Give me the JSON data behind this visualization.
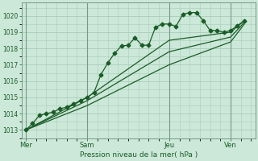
{
  "bg_color": "#cce8d8",
  "grid_color": "#aaccbb",
  "line_color": "#1a5c28",
  "ylabel": "Pression niveau de la mer( hPa )",
  "ylim": [
    1012.5,
    1020.8
  ],
  "yticks": [
    1013,
    1014,
    1015,
    1016,
    1017,
    1018,
    1019,
    1020
  ],
  "day_labels": [
    "Mer",
    "Sam",
    "Jeu",
    "Ven"
  ],
  "day_positions": [
    0.0,
    3.0,
    7.0,
    10.0
  ],
  "xlim": [
    -0.2,
    11.2
  ],
  "series1": {
    "x": [
      0,
      0.33,
      0.67,
      1.0,
      1.33,
      1.67,
      2.0,
      2.33,
      2.67,
      3.0,
      3.33,
      3.67,
      4.0,
      4.33,
      4.67,
      5.0,
      5.33,
      5.67,
      6.0,
      6.33,
      6.67,
      7.0,
      7.33,
      7.67,
      8.0,
      8.33,
      8.67,
      9.0,
      9.33,
      9.67,
      10.0,
      10.33,
      10.67
    ],
    "y": [
      1013.0,
      1013.4,
      1013.9,
      1014.0,
      1014.1,
      1014.3,
      1014.4,
      1014.6,
      1014.8,
      1015.0,
      1015.3,
      1016.4,
      1017.1,
      1017.7,
      1018.15,
      1018.2,
      1018.65,
      1018.2,
      1018.2,
      1019.3,
      1019.5,
      1019.5,
      1019.35,
      1020.1,
      1020.2,
      1020.2,
      1019.7,
      1019.1,
      1019.1,
      1019.0,
      1019.1,
      1019.4,
      1019.7
    ],
    "marker": "D",
    "markersize": 2.5
  },
  "series2": {
    "x": [
      0,
      3.0,
      7.0,
      10.0,
      10.67
    ],
    "y": [
      1013.0,
      1015.0,
      1018.5,
      1019.0,
      1019.7
    ]
  },
  "series3": {
    "x": [
      0,
      3.0,
      7.0,
      10.0,
      10.67
    ],
    "y": [
      1013.0,
      1014.8,
      1017.8,
      1018.7,
      1019.6
    ]
  },
  "series4": {
    "x": [
      0,
      3.0,
      7.0,
      10.0,
      10.67
    ],
    "y": [
      1013.0,
      1014.5,
      1017.0,
      1018.4,
      1019.5
    ]
  }
}
